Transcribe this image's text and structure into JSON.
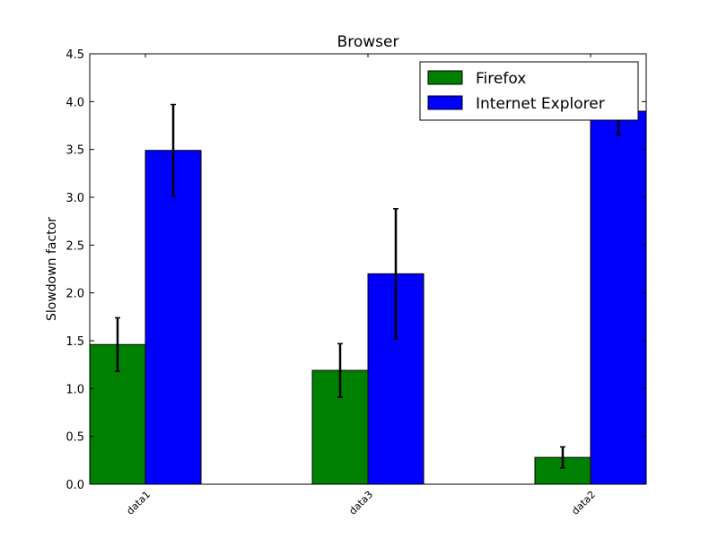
{
  "chart_data": {
    "type": "bar",
    "title": "Browser",
    "xlabel": "",
    "ylabel": "Slowdown factor",
    "categories": [
      "data1",
      "data3",
      "data2"
    ],
    "series": [
      {
        "name": "Firefox",
        "color": "#008000",
        "values": [
          1.46,
          1.19,
          0.28
        ],
        "errors": [
          0.28,
          0.28,
          0.11
        ]
      },
      {
        "name": "Internet Explorer",
        "color": "#0000ff",
        "values": [
          3.49,
          2.2,
          3.9
        ],
        "errors": [
          0.48,
          0.68,
          0.25
        ]
      }
    ],
    "ylim": [
      0,
      4.5
    ],
    "yticks": [
      "0.0",
      "0.5",
      "1.0",
      "1.5",
      "2.0",
      "2.5",
      "3.0",
      "3.5",
      "4.0",
      "4.5"
    ],
    "grid": false,
    "legend_position": "top-right"
  }
}
